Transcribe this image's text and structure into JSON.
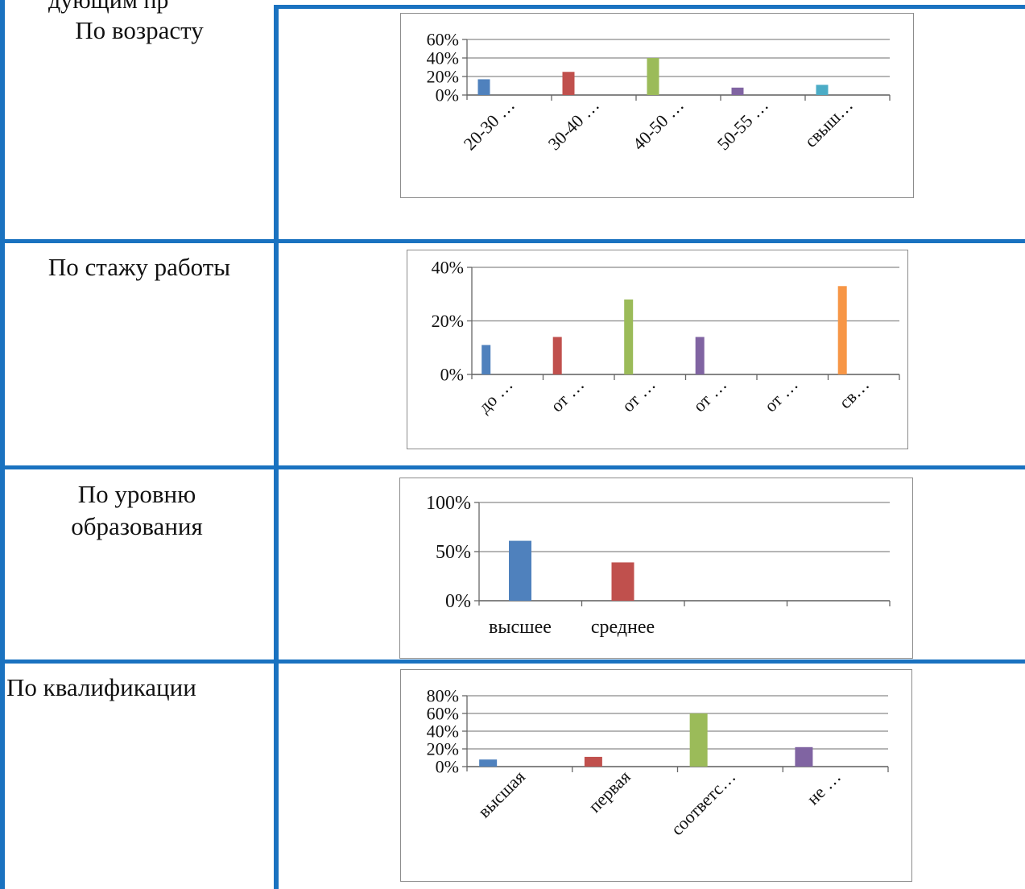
{
  "header_fragment": "дующим пр",
  "colors": {
    "border": "#1a72c0",
    "series": [
      "#4f81bd",
      "#c0504d",
      "#9bbb59",
      "#8064a2",
      "#4bacc6",
      "#f79646"
    ]
  },
  "rows": [
    {
      "label": "По возрасту",
      "chart_data": {
        "type": "bar",
        "categories": [
          "20-30 …",
          "30-40 …",
          "40-50 …",
          "50-55 …",
          "свыш…"
        ],
        "values": [
          17,
          25,
          40,
          8,
          11
        ],
        "y_unit": "%",
        "yticks": [
          0,
          20,
          40,
          60
        ],
        "ylim": [
          0,
          60
        ],
        "xlabel": "",
        "ylabel": "",
        "grid": true,
        "legend": "none"
      }
    },
    {
      "label": "По стажу работы",
      "chart_data": {
        "type": "bar",
        "categories": [
          "до …",
          "от …",
          "от …",
          "от …",
          "от …",
          "св…"
        ],
        "values": [
          11,
          14,
          28,
          14,
          0,
          33
        ],
        "y_unit": "%",
        "yticks": [
          0,
          20,
          40
        ],
        "ylim": [
          0,
          40
        ],
        "xlabel": "",
        "ylabel": "",
        "grid": true,
        "legend": "none"
      }
    },
    {
      "label": "По уровню образования",
      "chart_data": {
        "type": "bar",
        "categories": [
          "высшее",
          "среднее",
          "",
          ""
        ],
        "values": [
          61,
          39,
          0,
          0
        ],
        "y_unit": "%",
        "yticks": [
          0,
          50,
          100
        ],
        "ylim": [
          0,
          100
        ],
        "xlabel": "",
        "ylabel": "",
        "grid": true,
        "legend": "none"
      }
    },
    {
      "label": "По квалификации",
      "chart_data": {
        "type": "bar",
        "categories": [
          "высшая",
          "первая",
          "соответс…",
          "не …"
        ],
        "values": [
          8,
          11,
          60,
          22
        ],
        "y_unit": "%",
        "yticks": [
          0,
          20,
          40,
          60,
          80
        ],
        "ylim": [
          0,
          80
        ],
        "xlabel": "",
        "ylabel": "",
        "grid": true,
        "legend": "none"
      }
    }
  ]
}
